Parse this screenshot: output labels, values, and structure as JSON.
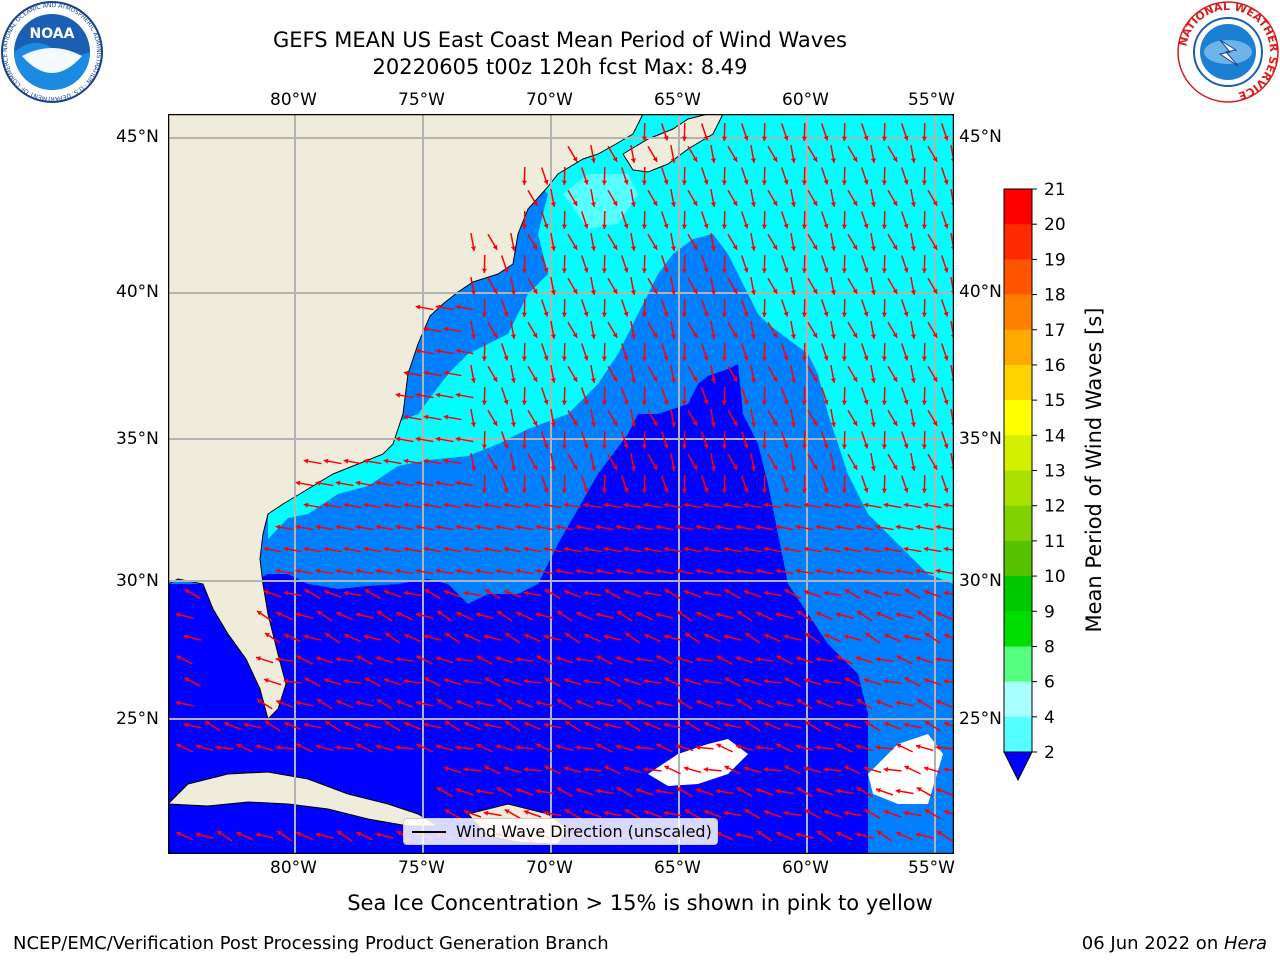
{
  "header": {
    "title_line1": "GEFS MEAN US East Coast Mean Period of Wind Waves",
    "title_line2": "20220605 t00z 120h fcst   Max: 8.49"
  },
  "logos": {
    "noaa": {
      "text": "NOAA",
      "ring_text": "NATIONAL OCEANIC AND ATMOSPHERIC ADMINISTRATION · U.S. DEPARTMENT OF COMMERCE"
    },
    "nws": {
      "ring_text": "NATIONAL WEATHER SERVICE"
    }
  },
  "map": {
    "lon_ticks": [
      "80°W",
      "75°W",
      "70°W",
      "65°W",
      "60°W",
      "55°W"
    ],
    "lat_ticks": [
      "45°N",
      "40°N",
      "35°N",
      "30°N",
      "25°N"
    ],
    "lon_range": [
      -85,
      -54.5
    ],
    "lat_range": [
      20.5,
      45.8
    ],
    "legend_label": "Wind Wave Direction (unscaled)",
    "colors": {
      "land": "#efecdc",
      "grid": "#b3b3b3",
      "arrow": "#ff0000",
      "no_data": "#ffffff"
    }
  },
  "colorbar": {
    "label": "Mean Period of Wind Waves [s]",
    "ticks": [
      "21",
      "20",
      "19",
      "18",
      "17",
      "16",
      "15",
      "14",
      "13",
      "12",
      "11",
      "10",
      "9",
      "8",
      "6",
      "4",
      "2"
    ],
    "colors": [
      "#ff0000",
      "#ff2a00",
      "#ff5500",
      "#ff8000",
      "#ffaa00",
      "#ffd400",
      "#ffff00",
      "#d4f000",
      "#aae100",
      "#80d200",
      "#55c300",
      "#00c800",
      "#00dc00",
      "#55ff80",
      "#aaffff",
      "#55ffff",
      "#00ffff",
      "#0080ff",
      "#0000ff"
    ]
  },
  "notes": {
    "sea_ice": "Sea Ice Concentration > 15% is shown in pink to yellow",
    "footer_left": "NCEP/EMC/Verification Post Processing Product Generation Branch",
    "footer_date": "06 Jun 2022 on ",
    "footer_host": "Hera"
  }
}
